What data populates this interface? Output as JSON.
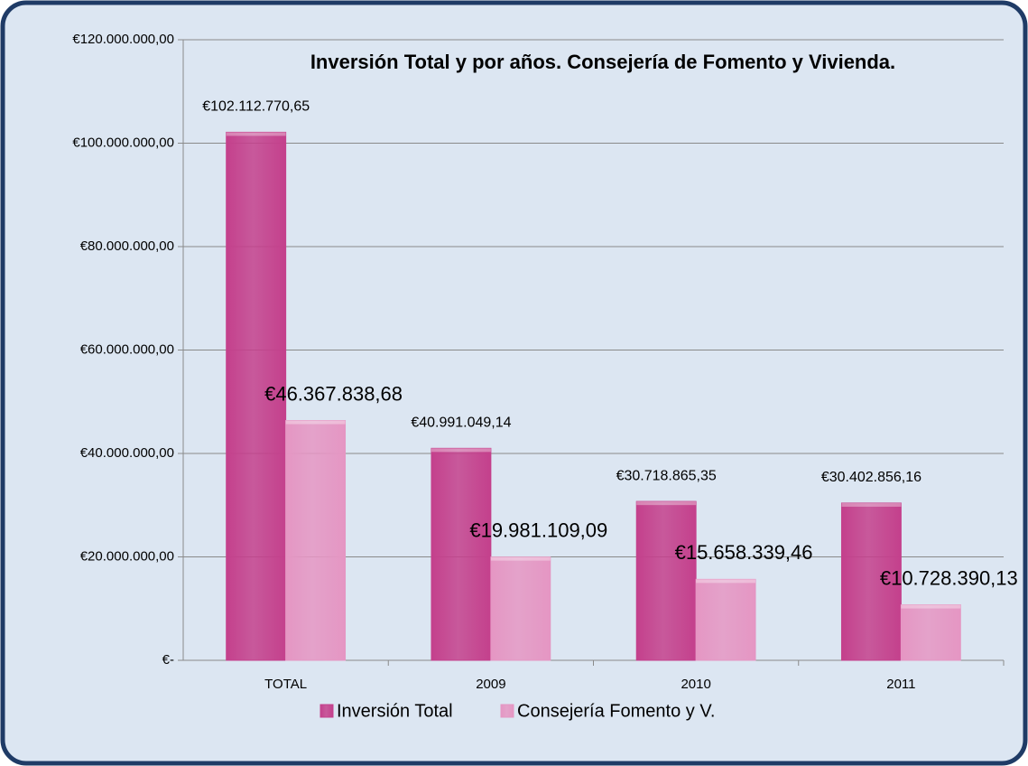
{
  "chart_data": {
    "type": "bar",
    "title": "Inversión Total y por años. Consejería de Fomento y Vivienda.",
    "categories": [
      "TOTAL",
      "2009",
      "2010",
      "2011"
    ],
    "series": [
      {
        "name": "Inversión Total",
        "color": "#c4408c",
        "values": [
          102112770.65,
          40991049.14,
          30718865.35,
          30402856.16
        ],
        "value_labels": [
          "€102.112.770,65",
          "€40.991.049,14",
          "€30.718.865,35",
          "€30.402.856,16"
        ]
      },
      {
        "name": "Consejería Fomento y V.",
        "color": "#e596c3",
        "values": [
          46367838.68,
          19981109.09,
          15658339.46,
          10728390.13
        ],
        "value_labels": [
          "€46.367.838,68",
          "€19.981.109,09",
          "€15.658.339,46",
          "€10.728.390,13"
        ]
      }
    ],
    "ylim": [
      0,
      120000000
    ],
    "yticks": [
      {
        "value": 0,
        "label": "€-"
      },
      {
        "value": 20000000,
        "label": "€20.000.000,00"
      },
      {
        "value": 40000000,
        "label": "€40.000.000,00"
      },
      {
        "value": 60000000,
        "label": "€60.000.000,00"
      },
      {
        "value": 80000000,
        "label": "€80.000.000,00"
      },
      {
        "value": 100000000,
        "label": "€100.000.000,00"
      },
      {
        "value": 120000000,
        "label": "€120.000.000,00"
      }
    ],
    "grid": true,
    "legend": "bottom"
  }
}
